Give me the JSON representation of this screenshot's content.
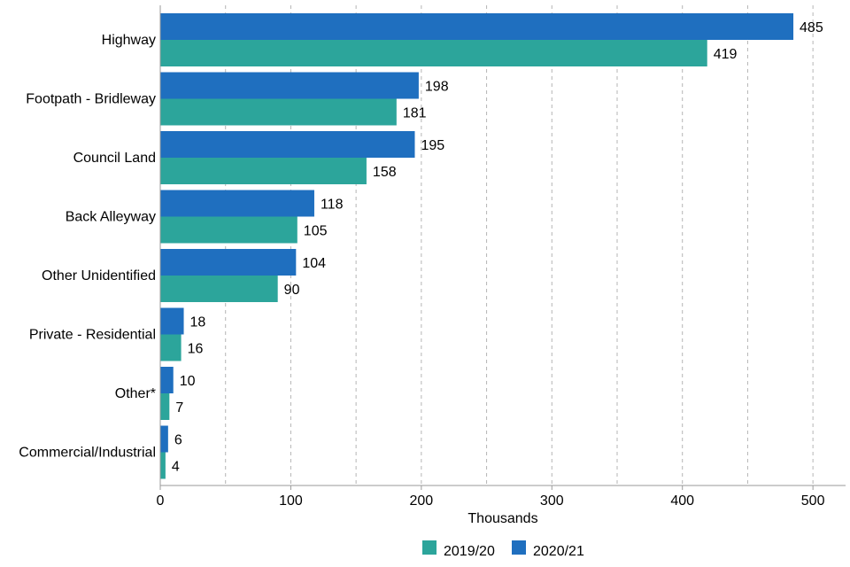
{
  "chart_data": {
    "type": "bar",
    "orientation": "horizontal",
    "categories": [
      "Highway",
      "Footpath - Bridleway",
      "Council Land",
      "Back Alleyway",
      "Other Unidentified",
      "Private - Residential",
      "Other*",
      "Commercial/Industrial"
    ],
    "series": [
      {
        "name": "2020/21",
        "color": "#1f6fbf",
        "values": [
          485,
          198,
          195,
          118,
          104,
          18,
          10,
          6
        ]
      },
      {
        "name": "2019/20",
        "color": "#2ca59b",
        "values": [
          419,
          181,
          158,
          105,
          90,
          16,
          7,
          4
        ]
      }
    ],
    "xlabel": "Thousands",
    "xlim": [
      0,
      525
    ],
    "xticks": [
      0,
      100,
      200,
      300,
      400,
      500
    ],
    "grid": "vertical dashed",
    "legend": {
      "position": "bottom",
      "entries": [
        {
          "label": "2019/20",
          "color": "#2ca59b"
        },
        {
          "label": "2020/21",
          "color": "#1f6fbf"
        }
      ]
    }
  }
}
